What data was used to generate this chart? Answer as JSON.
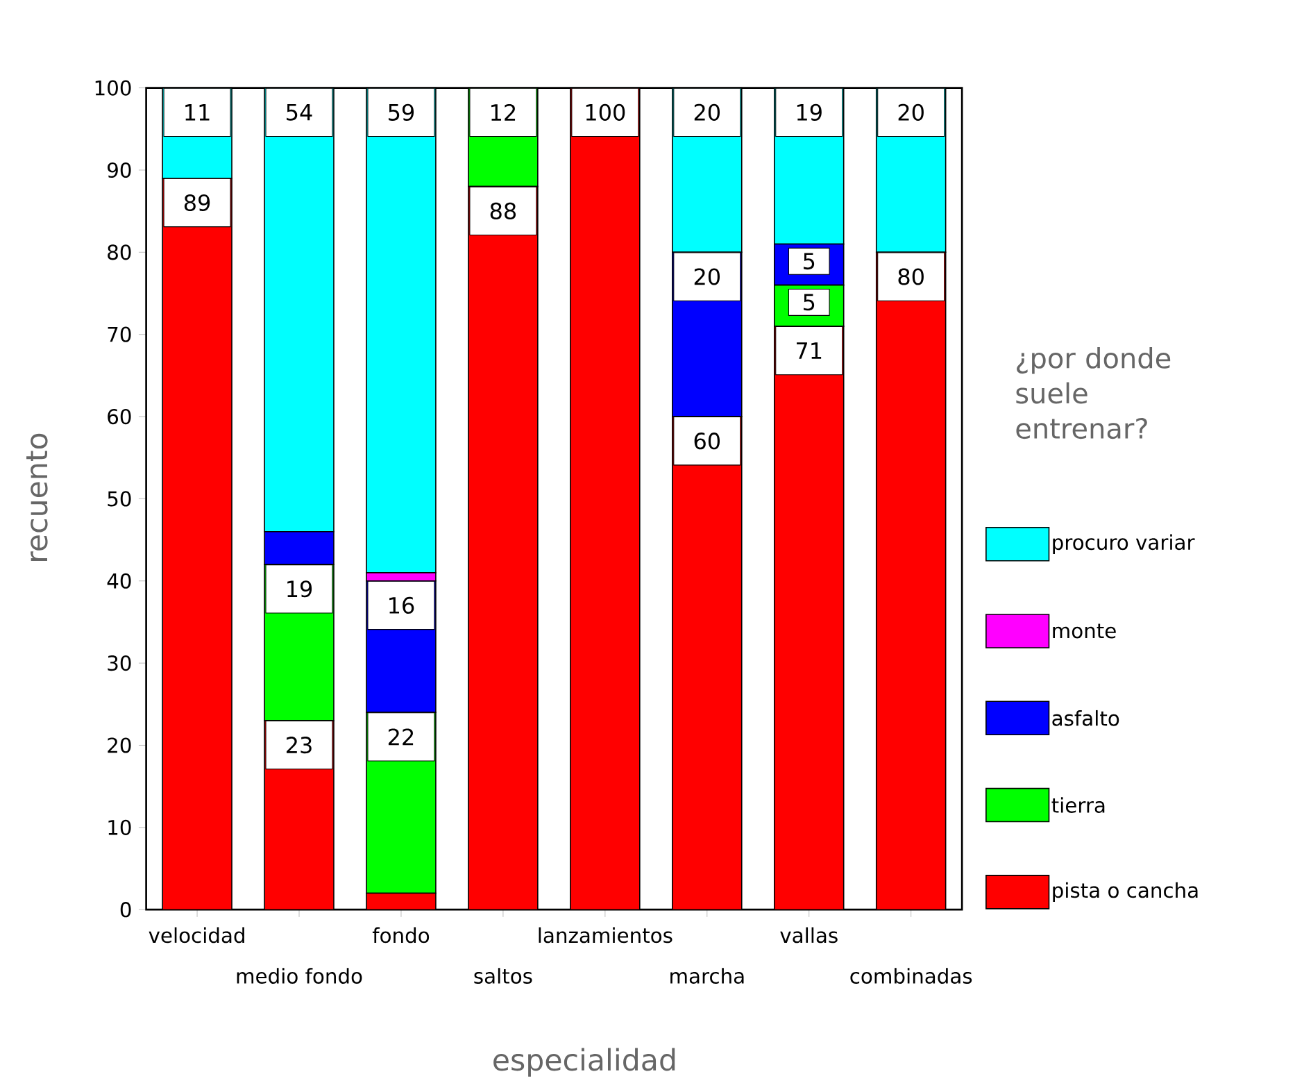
{
  "chart_data": {
    "type": "bar",
    "stacked": true,
    "xlabel": "especialidad",
    "ylabel": "recuento",
    "legend_title": "¿por donde suele entrenar?",
    "legend": "right",
    "categories": [
      "velocidad",
      "medio fondo",
      "fondo",
      "saltos",
      "lanzamientos",
      "marcha",
      "vallas",
      "combinadas"
    ],
    "ylim": [
      0,
      100
    ],
    "yticks": [
      0,
      10,
      20,
      30,
      40,
      50,
      60,
      70,
      80,
      90,
      100
    ],
    "series": [
      {
        "name": "pista o cancha",
        "color": "#ff0000",
        "values": [
          89,
          23,
          2,
          88,
          100,
          60,
          71,
          80
        ],
        "value_labels": [
          "89",
          "23",
          null,
          "88",
          "100",
          "60",
          "71",
          "80"
        ]
      },
      {
        "name": "tierra",
        "color": "#00ff00",
        "values": [
          0,
          19,
          22,
          12,
          0,
          0,
          5,
          0
        ],
        "value_labels": [
          null,
          "19",
          "22",
          "12",
          null,
          null,
          "5",
          null
        ]
      },
      {
        "name": "asfalto",
        "color": "#0000ff",
        "values": [
          0,
          4,
          16,
          0,
          0,
          20,
          5,
          0
        ],
        "value_labels": [
          null,
          null,
          "16",
          null,
          null,
          "20",
          "5",
          null
        ]
      },
      {
        "name": "monte",
        "color": "#ff00ff",
        "values": [
          0,
          0,
          1,
          0,
          0,
          0,
          0,
          0
        ],
        "value_labels": [
          null,
          null,
          null,
          null,
          null,
          null,
          null,
          null
        ]
      },
      {
        "name": "procuro variar",
        "color": "#00ffff",
        "values": [
          11,
          54,
          59,
          0,
          0,
          20,
          19,
          20
        ],
        "value_labels": [
          "11",
          "54",
          "59",
          null,
          null,
          "20",
          "19",
          "20"
        ]
      }
    ]
  }
}
